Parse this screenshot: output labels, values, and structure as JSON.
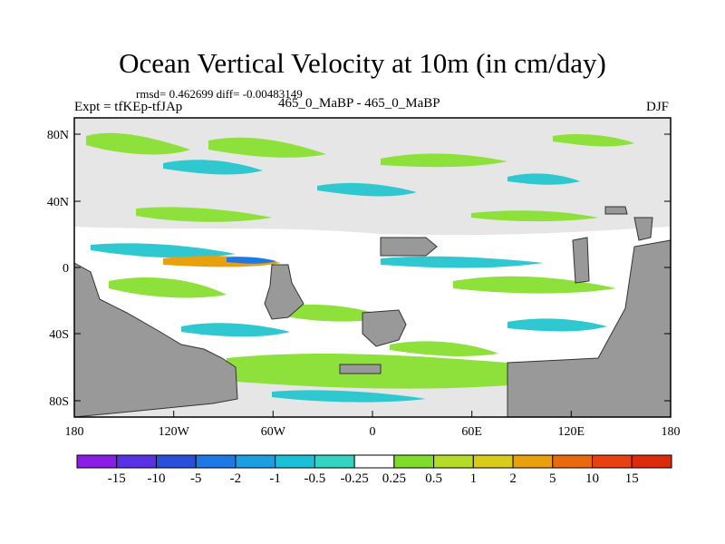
{
  "title": "Ocean Vertical Velocity at 10m (in cm/day)",
  "stats": "rmsd= 0.462699 diff= -0.00483149",
  "experiment": "Expt = tfKEp-tfJAp",
  "runs": "465_0_MaBP - 465_0_MaBP",
  "season": "DJF",
  "y_ticks": [
    "80N",
    "40N",
    "0",
    "40S",
    "80S"
  ],
  "x_ticks": [
    "180",
    "120W",
    "60W",
    "0",
    "60E",
    "120E",
    "180"
  ],
  "colorbar": {
    "labels": [
      "-15",
      "-10",
      "-5",
      "-2",
      "-1",
      "-0.5",
      "-0.25",
      "0.25",
      "0.5",
      "1",
      "2",
      "5",
      "10",
      "15"
    ],
    "colors": [
      "#8a1ee6",
      "#5a32e6",
      "#2a4fdc",
      "#1e78e6",
      "#1aa0e0",
      "#1cbfd8",
      "#34d4c4",
      "#ffffff",
      "#7fdc2a",
      "#b4dc28",
      "#d8cc18",
      "#e8a00c",
      "#e86a0c",
      "#e84010",
      "#dc2a0c"
    ]
  },
  "colors": {
    "land": "#999999",
    "near_zero": "#e6e6e6",
    "positive": "#8ee03a",
    "negative": "#30c8d0"
  }
}
